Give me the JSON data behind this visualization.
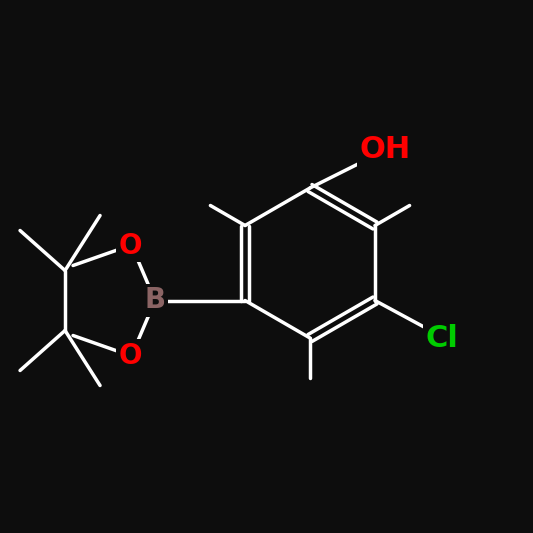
{
  "bg_color": "#000000",
  "bond_color": "#000000",
  "white": "#ffffff",
  "atom_colors": {
    "O": "#ff0000",
    "B": "#8b6464",
    "Cl": "#00cc00"
  },
  "figsize": [
    5.33,
    5.33
  ],
  "dpi": 100
}
